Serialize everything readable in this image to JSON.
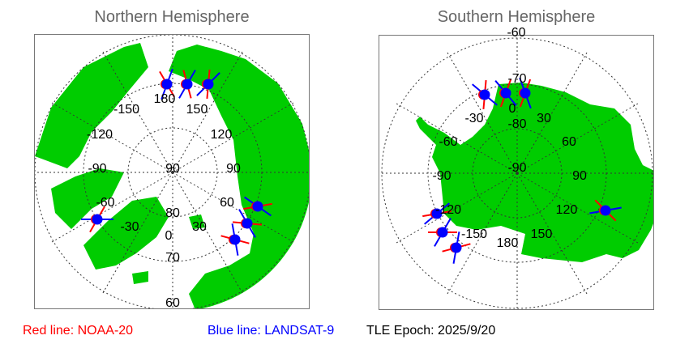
{
  "north": {
    "title": "Northern Hemisphere",
    "lon_labels": [
      "180",
      "150",
      "120",
      "90",
      "60",
      "30",
      "0",
      "-30",
      "-60",
      "-90",
      "-120",
      "-150"
    ],
    "lat_labels": [
      "90",
      "80",
      "70",
      "60"
    ]
  },
  "south": {
    "title": "Southern Hemisphere",
    "lon_labels": [
      "0",
      "30",
      "60",
      "90",
      "120",
      "150",
      "180",
      "-150",
      "-120",
      "-90",
      "-60",
      "-30"
    ],
    "lat_labels": [
      "-90",
      "-80",
      "-70",
      "-60"
    ]
  },
  "legend": {
    "red": "Red line: NOAA-20",
    "blue": "Blue line: LANDSAT-9",
    "epoch": "TLE Epoch: 2025/9/20"
  },
  "colors": {
    "land": "#00cc00",
    "noaa20": "#ff0000",
    "landsat9": "#0000ff",
    "grid": "#333333",
    "title": "#666666"
  }
}
